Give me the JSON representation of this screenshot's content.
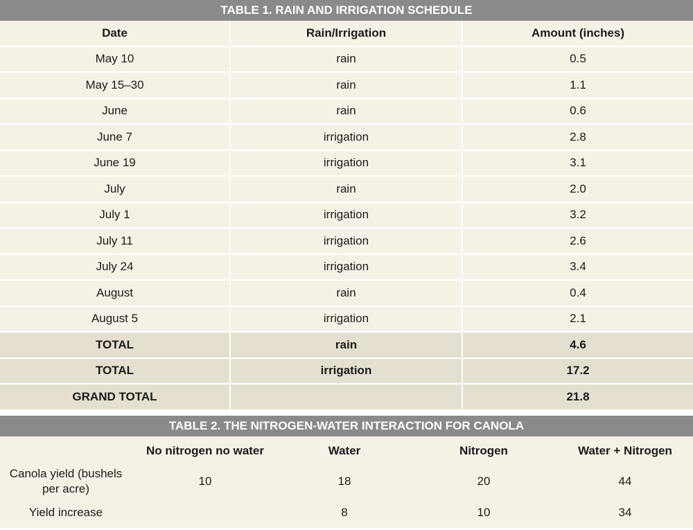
{
  "table1": {
    "title": "TABLE 1. RAIN AND IRRIGATION SCHEDULE",
    "headers": [
      "Date",
      "Rain/Irrigation",
      "Amount (inches)"
    ],
    "rows": [
      [
        "May 10",
        "rain",
        "0.5"
      ],
      [
        "May 15–30",
        "rain",
        "1.1"
      ],
      [
        "June",
        "rain",
        "0.6"
      ],
      [
        "June 7",
        "irrigation",
        "2.8"
      ],
      [
        "June 19",
        "irrigation",
        "3.1"
      ],
      [
        "July",
        "rain",
        "2.0"
      ],
      [
        "July 1",
        "irrigation",
        "3.2"
      ],
      [
        "July 11",
        "irrigation",
        "2.6"
      ],
      [
        "July 24",
        "irrigation",
        "3.4"
      ],
      [
        "August",
        "rain",
        "0.4"
      ],
      [
        "August 5",
        "irrigation",
        "2.1"
      ]
    ],
    "totals": [
      [
        "TOTAL",
        "rain",
        "4.6"
      ],
      [
        "TOTAL",
        "irrigation",
        "17.2"
      ],
      [
        "GRAND TOTAL",
        "",
        "21.8"
      ]
    ]
  },
  "table2": {
    "title": "TABLE 2. THE NITROGEN-WATER INTERACTION FOR CANOLA",
    "headers": [
      "",
      "No nitrogen no water",
      "Water",
      "Nitrogen",
      "Water + Nitrogen"
    ],
    "rows": [
      [
        "Canola yield (bushels per acre)",
        "10",
        "18",
        "20",
        "44"
      ],
      [
        "Yield increase",
        "",
        "8",
        "10",
        "34"
      ]
    ]
  }
}
